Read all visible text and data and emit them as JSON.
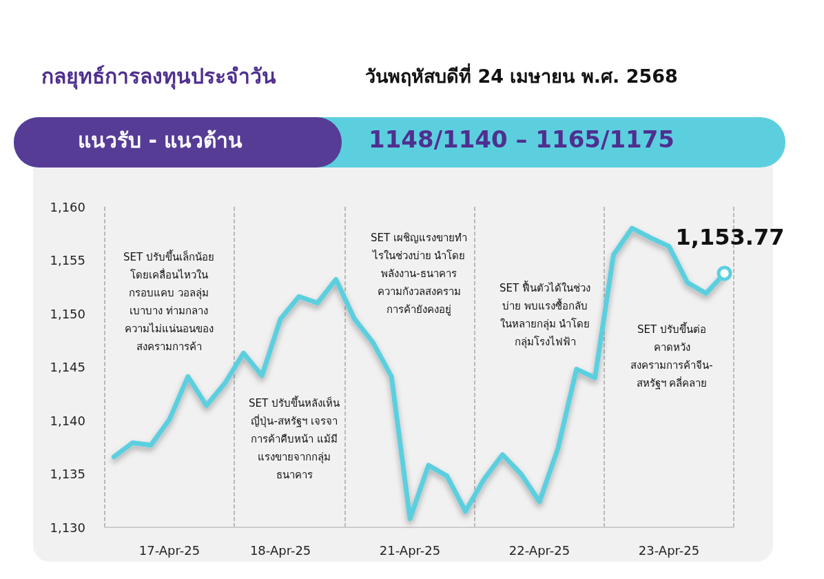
{
  "chart_data": {
    "type": "line",
    "title": "กลยุทธ์การลงทุนประจำวัน",
    "subtitle": "วันพฤหัสบดีที่ 24 เมษายน พ.ศ. 2568",
    "annotations": [
      "แนวรับ - แนวต้าน",
      "1148/1140 – 1165/1175",
      "SET ปรับขึ้นเล็กน้อย\nโดยเคลื่อนไหวใน\nกรอบแคบ วอลลุ่ม\nเบาบาง ท่ามกลาง\nความไม่แน่นอนของ\nสงครามการค้า",
      "SET ปรับขึ้นหลังเห็น\nญี่ปุ่น-สหรัฐฯ เจรจา\nการค้าคืบหน้า แม้มี\nแรงขายจากกลุ่ม\nธนาคาร",
      "SET เผชิญแรงขายทำ\nไรในช่วงบ่าย นำโดย\nพลังงาน-ธนาคาร\nความกังวลสงคราม\nการค้ายังคงอยู่",
      "SET ฟื้นตัวได้ในช่วง\nบ่าย พบแรงซื้อกลับ\nในหลายกลุ่ม นำโดย\nกลุ่มโรงไฟฟ้า",
      "SET ปรับขึ้นต่อ\nคาดหวัง\nสงครามการค้าจีน-\nสหรัฐฯ คลี่คลาย"
    ],
    "categories": [
      null,
      null,
      null,
      "17-Apr-25",
      null,
      null,
      null,
      null,
      null,
      "18-Apr-25",
      null,
      null,
      null,
      null,
      null,
      null,
      "21-Apr-25",
      null,
      null,
      null,
      null,
      null,
      null,
      "22-Apr-25",
      null,
      null,
      null,
      null,
      null,
      null,
      "23-Apr-25",
      null,
      null,
      null
    ],
    "series": [
      {
        "color": "#5ccfdf",
        "values": [
          1136.6,
          1137.9,
          1137.7,
          1140.1,
          1144.1,
          1141.4,
          1143.5,
          1146.3,
          1144.2,
          1149.5,
          1151.6,
          1151.0,
          1153.2,
          1149.5,
          1147.3,
          1144.1,
          1130.8,
          1135.8,
          1134.8,
          1131.5,
          1134.5,
          1136.8,
          1135.0,
          1132.4,
          1137.4,
          1144.8,
          1144.0,
          1155.5,
          1158.0,
          1157.1,
          1156.3,
          1152.9,
          1151.9,
          1153.77
        ],
        "value_labels": [
          null,
          null,
          null,
          null,
          null,
          null,
          null,
          null,
          null,
          null,
          null,
          null,
          null,
          null,
          null,
          null,
          null,
          null,
          null,
          null,
          null,
          null,
          null,
          null,
          null,
          null,
          null,
          null,
          null,
          null,
          null,
          null,
          null,
          "1,153.77"
        ]
      }
    ],
    "ylim": [
      1130,
      1160
    ],
    "yticks": [
      {
        "value": 1130,
        "label": "1,130"
      },
      {
        "value": 1135,
        "label": "1,135"
      },
      {
        "value": 1140,
        "label": "1,140"
      },
      {
        "value": 1145,
        "label": "1,145"
      },
      {
        "value": 1150,
        "label": "1,150"
      },
      {
        "value": 1155,
        "label": "1,155"
      },
      {
        "value": 1160,
        "label": "1,160"
      }
    ],
    "grid": "x",
    "marker": "none",
    "line_style": "solid"
  }
}
